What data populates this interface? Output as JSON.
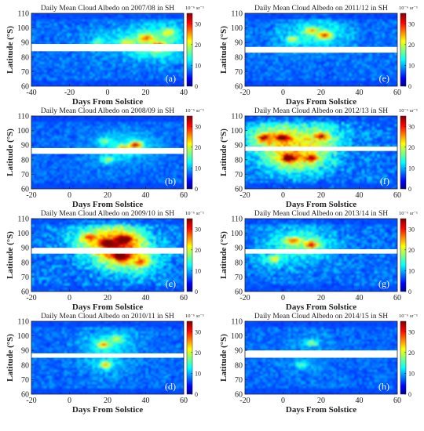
{
  "figure": {
    "x_axis_label": "Days From Solstice",
    "y_axis_label": "Latitude (°S)",
    "colorbar_unit": "10⁻⁶ sr⁻¹"
  },
  "chart_data": [
    {
      "type": "heatmap",
      "panel": "(a)",
      "title": "Daily Mean Cloud Albedo on 2007/08 in SH",
      "xlim": [
        -40,
        40
      ],
      "xticks": [
        -40,
        -20,
        0,
        20,
        40
      ],
      "ylim": [
        60,
        110
      ],
      "yticks": [
        60,
        70,
        80,
        90,
        100,
        110
      ],
      "colorbar": {
        "range": [
          0,
          35
        ],
        "ticks": [
          0,
          10,
          20,
          30
        ]
      },
      "data_gap_latitude": [
        84,
        89
      ],
      "hotspots": [
        {
          "day": 27,
          "lat": 87,
          "value": 35
        },
        {
          "day": 20,
          "lat": 93,
          "value": 16
        },
        {
          "day": 32,
          "lat": 97,
          "value": 14
        },
        {
          "day": 10,
          "lat": 90,
          "value": 12
        },
        {
          "day": -5,
          "lat": 90,
          "value": 10
        }
      ],
      "intensity": 0.55
    },
    {
      "type": "heatmap",
      "panel": "(b)",
      "title": "Daily Mean Cloud Albedo on 2008/09 in SH",
      "xlim": [
        -20,
        60
      ],
      "xticks": [
        -20,
        0,
        20,
        40,
        60
      ],
      "ylim": [
        60,
        110
      ],
      "yticks": [
        60,
        70,
        80,
        90,
        100,
        110
      ],
      "colorbar": {
        "range": [
          0,
          35
        ],
        "ticks": [
          0,
          10,
          20,
          30
        ]
      },
      "data_gap_latitude": [
        84,
        88
      ],
      "hotspots": [
        {
          "day": 35,
          "lat": 90,
          "value": 28
        },
        {
          "day": 28,
          "lat": 88,
          "value": 16
        },
        {
          "day": 20,
          "lat": 80,
          "value": 12
        },
        {
          "day": 18,
          "lat": 93,
          "value": 10
        }
      ],
      "intensity": 0.3
    },
    {
      "type": "heatmap",
      "panel": "(c)",
      "title": "Daily Mean Cloud Albedo on 2009/10 in SH",
      "xlim": [
        -20,
        60
      ],
      "xticks": [
        -20,
        0,
        20,
        40,
        60
      ],
      "ylim": [
        60,
        110
      ],
      "yticks": [
        60,
        70,
        80,
        90,
        100,
        110
      ],
      "colorbar": {
        "range": [
          0,
          35
        ],
        "ticks": [
          0,
          10,
          20,
          30
        ]
      },
      "data_gap_latitude": [
        86,
        90
      ],
      "hotspots": [
        {
          "day": 27,
          "lat": 84,
          "value": 35
        },
        {
          "day": 29,
          "lat": 96,
          "value": 32
        },
        {
          "day": 20,
          "lat": 93,
          "value": 22
        },
        {
          "day": 10,
          "lat": 97,
          "value": 15
        },
        {
          "day": 38,
          "lat": 80,
          "value": 14
        }
      ],
      "intensity": 1.0
    },
    {
      "type": "heatmap",
      "panel": "(d)",
      "title": "Daily Mean Cloud Albedo on 2010/11 in SH",
      "xlim": [
        -20,
        60
      ],
      "xticks": [
        -20,
        0,
        20,
        40,
        60
      ],
      "ylim": [
        60,
        110
      ],
      "yticks": [
        60,
        70,
        80,
        90,
        100,
        110
      ],
      "colorbar": {
        "range": [
          0,
          35
        ],
        "ticks": [
          0,
          10,
          20,
          30
        ]
      },
      "data_gap_latitude": [
        85,
        88
      ],
      "hotspots": [
        {
          "day": 18,
          "lat": 94,
          "value": 20
        },
        {
          "day": 19,
          "lat": 80,
          "value": 18
        },
        {
          "day": 25,
          "lat": 98,
          "value": 12
        }
      ],
      "intensity": 0.45
    },
    {
      "type": "heatmap",
      "panel": "(e)",
      "title": "Daily Mean Cloud Albedo on 2011/12 in SH",
      "xlim": [
        -20,
        60
      ],
      "xticks": [
        -20,
        0,
        20,
        40,
        60
      ],
      "ylim": [
        60,
        110
      ],
      "yticks": [
        60,
        70,
        80,
        90,
        100,
        110
      ],
      "colorbar": {
        "range": [
          0,
          35
        ],
        "ticks": [
          0,
          10,
          20,
          30
        ]
      },
      "data_gap_latitude": [
        83,
        87
      ],
      "hotspots": [
        {
          "day": 22,
          "lat": 95,
          "value": 22
        },
        {
          "day": 15,
          "lat": 98,
          "value": 14
        },
        {
          "day": 5,
          "lat": 92,
          "value": 12
        }
      ],
      "intensity": 0.55
    },
    {
      "type": "heatmap",
      "panel": "(f)",
      "title": "Daily Mean Cloud Albedo on 2012/13 in SH",
      "xlim": [
        -20,
        60
      ],
      "xticks": [
        -20,
        0,
        20,
        40,
        60
      ],
      "ylim": [
        60,
        110
      ],
      "yticks": [
        60,
        70,
        80,
        90,
        100,
        110
      ],
      "colorbar": {
        "range": [
          0,
          35
        ],
        "ticks": [
          0,
          10,
          20,
          30
        ]
      },
      "data_gap_latitude": [
        86,
        89
      ],
      "hotspots": [
        {
          "day": 3,
          "lat": 81,
          "value": 30
        },
        {
          "day": 0,
          "lat": 95,
          "value": 25
        },
        {
          "day": 20,
          "lat": 96,
          "value": 24
        },
        {
          "day": -10,
          "lat": 95,
          "value": 20
        },
        {
          "day": 15,
          "lat": 81,
          "value": 20
        }
      ],
      "intensity": 1.0
    },
    {
      "type": "heatmap",
      "panel": "(g)",
      "title": "Daily Mean Cloud Albedo on 2013/14 in SH",
      "xlim": [
        -20,
        60
      ],
      "xticks": [
        -20,
        0,
        20,
        40,
        60
      ],
      "ylim": [
        60,
        110
      ],
      "yticks": [
        60,
        70,
        80,
        90,
        100,
        110
      ],
      "colorbar": {
        "range": [
          0,
          35
        ],
        "ticks": [
          0,
          10,
          20,
          30
        ]
      },
      "data_gap_latitude": [
        86,
        89
      ],
      "hotspots": [
        {
          "day": 15,
          "lat": 92,
          "value": 22
        },
        {
          "day": 5,
          "lat": 95,
          "value": 18
        },
        {
          "day": -5,
          "lat": 82,
          "value": 14
        }
      ],
      "intensity": 0.75
    },
    {
      "type": "heatmap",
      "panel": "(h)",
      "title": "Daily Mean Cloud Albedo on 2014/15 in SH",
      "xlim": [
        -20,
        60
      ],
      "xticks": [
        -20,
        0,
        20,
        40,
        60
      ],
      "ylim": [
        60,
        110
      ],
      "yticks": [
        60,
        70,
        80,
        90,
        100,
        110
      ],
      "colorbar": {
        "range": [
          0,
          35
        ],
        "ticks": [
          0,
          10,
          20,
          30
        ]
      },
      "data_gap_latitude": [
        85,
        90
      ],
      "hotspots": [
        {
          "day": 15,
          "lat": 95,
          "value": 12
        },
        {
          "day": 10,
          "lat": 80,
          "value": 10
        }
      ],
      "intensity": 0.35
    }
  ]
}
